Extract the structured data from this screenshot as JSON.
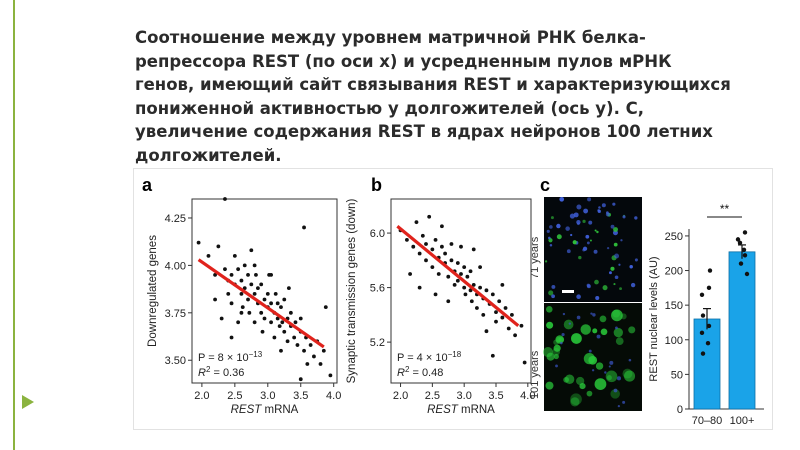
{
  "slide": {
    "title": "Соотношение между уровнем матричной РНК белка-репрессора REST (по оси х) и усредненным пулов мРНК генов, имеющий сайт связывания REST и характеризующихся пониженной активностью у долгожителей (ось у). С, увеличение содержания REST в ядрах нейронов 100 летних долгожителей.",
    "accent_color": "#8bb33f"
  },
  "panel_labels": {
    "a": "a",
    "b": "b",
    "c": "c"
  },
  "micrograph": {
    "label_top": "71 years",
    "label_bottom": "101 years"
  },
  "chart_data": [
    {
      "type": "scatter",
      "panel": "a",
      "xlabel_italic": "REST",
      "xlabel_rest": " mRNA",
      "ylabel": "Downregulated genes",
      "xlim": [
        1.85,
        4.05
      ],
      "ylim": [
        3.38,
        4.35
      ],
      "xticks": [
        2.0,
        2.5,
        3.0,
        3.5,
        4.0
      ],
      "yticks": [
        3.5,
        3.75,
        4.0,
        4.25
      ],
      "xtick_labels": [
        "2.0",
        "2.5",
        "3.0",
        "3.5",
        "4.0"
      ],
      "ytick_labels": [
        "3.50",
        "3.75",
        "4.00",
        "4.25"
      ],
      "stat_p": "P = 8 × 10",
      "stat_p_exp": "−13",
      "stat_r2": "R",
      "stat_r2_sup": "2",
      "stat_r2_val": " = 0.36",
      "fit": {
        "x0": 1.95,
        "y0": 4.03,
        "x1": 3.85,
        "y1": 3.57
      },
      "points": [
        [
          1.95,
          4.12
        ],
        [
          2.1,
          4.05
        ],
        [
          2.2,
          3.95
        ],
        [
          2.25,
          4.1
        ],
        [
          2.3,
          3.72
        ],
        [
          2.35,
          3.98
        ],
        [
          2.35,
          4.35
        ],
        [
          2.4,
          3.92
        ],
        [
          2.4,
          3.85
        ],
        [
          2.45,
          3.95
        ],
        [
          2.45,
          3.8
        ],
        [
          2.5,
          4.05
        ],
        [
          2.5,
          3.9
        ],
        [
          2.55,
          3.98
        ],
        [
          2.55,
          3.7
        ],
        [
          2.6,
          3.92
        ],
        [
          2.6,
          3.85
        ],
        [
          2.62,
          3.78
        ],
        [
          2.65,
          4.0
        ],
        [
          2.65,
          3.88
        ],
        [
          2.7,
          3.95
        ],
        [
          2.7,
          3.82
        ],
        [
          2.72,
          3.75
        ],
        [
          2.75,
          3.9
        ],
        [
          2.75,
          4.08
        ],
        [
          2.8,
          3.85
        ],
        [
          2.8,
          3.7
        ],
        [
          2.82,
          3.95
        ],
        [
          2.85,
          3.8
        ],
        [
          2.85,
          3.88
        ],
        [
          2.9,
          3.75
        ],
        [
          2.9,
          3.9
        ],
        [
          2.92,
          3.65
        ],
        [
          2.95,
          3.82
        ],
        [
          2.95,
          3.72
        ],
        [
          3.0,
          3.85
        ],
        [
          3.0,
          3.78
        ],
        [
          3.02,
          3.95
        ],
        [
          3.05,
          3.7
        ],
        [
          3.05,
          3.8
        ],
        [
          3.1,
          3.75
        ],
        [
          3.1,
          3.62
        ],
        [
          3.12,
          3.85
        ],
        [
          3.15,
          3.72
        ],
        [
          3.15,
          3.8
        ],
        [
          3.18,
          3.68
        ],
        [
          3.2,
          3.78
        ],
        [
          3.2,
          3.55
        ],
        [
          3.22,
          3.7
        ],
        [
          3.25,
          3.82
        ],
        [
          3.25,
          3.65
        ],
        [
          3.3,
          3.72
        ],
        [
          3.3,
          3.6
        ],
        [
          3.32,
          3.88
        ],
        [
          3.35,
          3.68
        ],
        [
          3.35,
          3.75
        ],
        [
          3.4,
          3.62
        ],
        [
          3.42,
          3.7
        ],
        [
          3.45,
          3.58
        ],
        [
          3.5,
          3.65
        ],
        [
          3.5,
          3.72
        ],
        [
          3.55,
          3.55
        ],
        [
          3.58,
          3.62
        ],
        [
          3.6,
          3.48
        ],
        [
          3.65,
          3.58
        ],
        [
          3.7,
          3.52
        ],
        [
          3.75,
          3.6
        ],
        [
          3.8,
          3.48
        ],
        [
          3.85,
          3.55
        ],
        [
          3.95,
          3.42
        ],
        [
          2.45,
          3.62
        ],
        [
          2.6,
          3.75
        ],
        [
          2.8,
          4.0
        ],
        [
          3.05,
          3.95
        ],
        [
          3.5,
          3.4
        ],
        [
          3.55,
          4.2
        ],
        [
          2.2,
          3.82
        ],
        [
          3.88,
          3.78
        ]
      ]
    },
    {
      "type": "scatter",
      "panel": "b",
      "xlabel_italic": "REST",
      "xlabel_rest": " mRNA",
      "ylabel": "Synaptic transmission genes (down)",
      "xlim": [
        1.85,
        4.05
      ],
      "ylim": [
        4.9,
        6.25
      ],
      "xticks": [
        2.0,
        2.5,
        3.0,
        3.5,
        4.0
      ],
      "yticks": [
        5.2,
        5.6,
        6.0
      ],
      "xtick_labels": [
        "2.0",
        "2.5",
        "3.0",
        "3.5",
        "4.0"
      ],
      "ytick_labels": [
        "5.2",
        "5.6",
        "6.0"
      ],
      "stat_p": "P = 4 × 10",
      "stat_p_exp": "−18",
      "stat_r2": "R",
      "stat_r2_sup": "2",
      "stat_r2_val": " = 0.48",
      "fit": {
        "x0": 1.95,
        "y0": 6.05,
        "x1": 3.85,
        "y1": 5.32
      },
      "points": [
        [
          2.0,
          6.02
        ],
        [
          2.1,
          5.95
        ],
        [
          2.2,
          5.9
        ],
        [
          2.25,
          6.08
        ],
        [
          2.3,
          5.85
        ],
        [
          2.35,
          5.98
        ],
        [
          2.4,
          5.92
        ],
        [
          2.4,
          5.8
        ],
        [
          2.45,
          6.12
        ],
        [
          2.5,
          5.88
        ],
        [
          2.5,
          5.75
        ],
        [
          2.55,
          5.95
        ],
        [
          2.6,
          5.82
        ],
        [
          2.6,
          5.7
        ],
        [
          2.65,
          5.9
        ],
        [
          2.7,
          5.78
        ],
        [
          2.7,
          5.85
        ],
        [
          2.75,
          5.68
        ],
        [
          2.8,
          5.8
        ],
        [
          2.8,
          5.92
        ],
        [
          2.85,
          5.72
        ],
        [
          2.85,
          5.62
        ],
        [
          2.9,
          5.78
        ],
        [
          2.9,
          5.65
        ],
        [
          2.95,
          5.7
        ],
        [
          3.0,
          5.6
        ],
        [
          3.0,
          5.75
        ],
        [
          3.02,
          5.55
        ],
        [
          3.05,
          5.68
        ],
        [
          3.1,
          5.58
        ],
        [
          3.1,
          5.72
        ],
        [
          3.12,
          5.5
        ],
        [
          3.15,
          5.62
        ],
        [
          3.2,
          5.55
        ],
        [
          3.2,
          5.45
        ],
        [
          3.25,
          5.6
        ],
        [
          3.3,
          5.52
        ],
        [
          3.3,
          5.4
        ],
        [
          3.35,
          5.58
        ],
        [
          3.4,
          5.48
        ],
        [
          3.45,
          5.55
        ],
        [
          3.5,
          5.42
        ],
        [
          3.5,
          5.35
        ],
        [
          3.55,
          5.5
        ],
        [
          3.6,
          5.38
        ],
        [
          3.65,
          5.45
        ],
        [
          3.7,
          5.3
        ],
        [
          3.75,
          5.4
        ],
        [
          3.8,
          5.25
        ],
        [
          3.9,
          5.32
        ],
        [
          2.3,
          5.6
        ],
        [
          2.55,
          5.55
        ],
        [
          2.65,
          6.05
        ],
        [
          2.95,
          5.9
        ],
        [
          3.15,
          5.88
        ],
        [
          3.35,
          5.28
        ],
        [
          3.6,
          5.62
        ],
        [
          3.95,
          5.05
        ],
        [
          2.15,
          5.7
        ],
        [
          3.45,
          5.1
        ],
        [
          2.75,
          5.5
        ],
        [
          3.25,
          5.75
        ]
      ]
    },
    {
      "type": "bar",
      "panel": "c",
      "categories": [
        "70–80",
        "100+"
      ],
      "values": [
        130,
        227
      ],
      "errors": [
        15,
        10
      ],
      "ylabel": "REST nuclear levels (AU)",
      "ylim": [
        0,
        260
      ],
      "yticks": [
        0,
        50,
        100,
        150,
        200,
        250
      ],
      "ytick_labels": [
        "0",
        "50",
        "100",
        "150",
        "200",
        "250"
      ],
      "significance": "**",
      "bar_color": "#1aa3e8",
      "points": [
        [
          0,
          200
        ],
        [
          0,
          165
        ],
        [
          0,
          120
        ],
        [
          0,
          110
        ],
        [
          0,
          95
        ],
        [
          0,
          80
        ],
        [
          0,
          135
        ],
        [
          0,
          175
        ],
        [
          1,
          255
        ],
        [
          1,
          245
        ],
        [
          1,
          230
        ],
        [
          1,
          222
        ],
        [
          1,
          210
        ],
        [
          1,
          195
        ],
        [
          1,
          240
        ]
      ]
    }
  ]
}
